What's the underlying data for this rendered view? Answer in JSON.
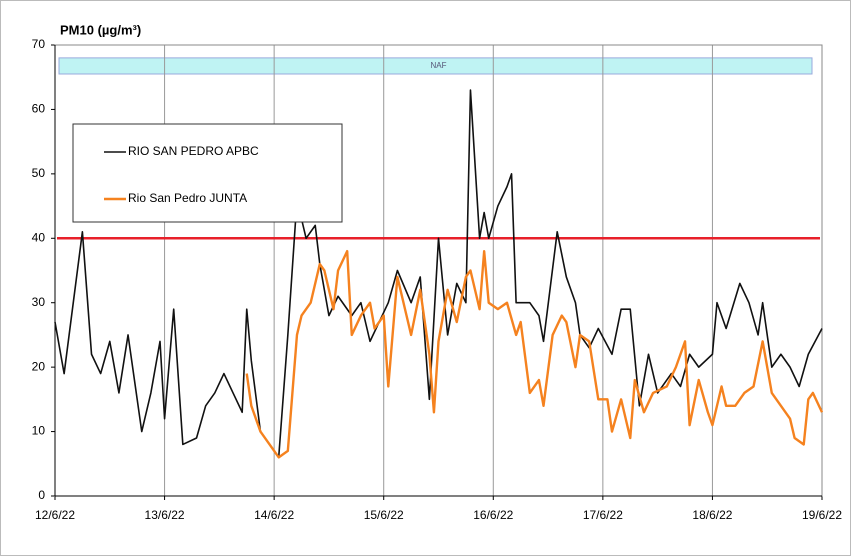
{
  "chart_data": {
    "type": "line",
    "title": "PM10 (µg/m³)",
    "xlim": [
      0,
      168
    ],
    "xticks": [
      {
        "value": 0,
        "label": "12/6/22"
      },
      {
        "value": 24,
        "label": "13/6/22"
      },
      {
        "value": 48,
        "label": "14/6/22"
      },
      {
        "value": 72,
        "label": "15/6/22"
      },
      {
        "value": 96,
        "label": "16/6/22"
      },
      {
        "value": 120,
        "label": "17/6/22"
      },
      {
        "value": 144,
        "label": "18/6/22"
      },
      {
        "value": 168,
        "label": "19/6/22"
      }
    ],
    "ylim": [
      0,
      70
    ],
    "yticks": [
      0,
      10,
      20,
      30,
      40,
      50,
      60,
      70
    ],
    "grid": "x",
    "reference_line": {
      "value": 40,
      "color": "#e8202a"
    },
    "band": {
      "label": "NAF",
      "from": 65.5,
      "to": 68,
      "color": "#bff3f3"
    },
    "legend": "upper left",
    "series": [
      {
        "name": "RIO SAN PEDRO APBC",
        "color": "#111111",
        "x": [
          0,
          2,
          6,
          8,
          10,
          12,
          14,
          16,
          19,
          21,
          23,
          24,
          26,
          28,
          31,
          33,
          35,
          37,
          39,
          41,
          42,
          43,
          45,
          47,
          49,
          51,
          53,
          55,
          57,
          58,
          60,
          62,
          65,
          67,
          69,
          71,
          73,
          75,
          78,
          80,
          82,
          84,
          86,
          88,
          90,
          91,
          93,
          94,
          95,
          97,
          99,
          100,
          101,
          104,
          106,
          107,
          110,
          112,
          114,
          115,
          117,
          119,
          122,
          124,
          126,
          128,
          130,
          132,
          135,
          137,
          139,
          141,
          144,
          145,
          147,
          150,
          152,
          154,
          155,
          157,
          159,
          161,
          163,
          165,
          168
        ],
        "values": [
          27,
          19,
          41,
          22,
          19,
          24,
          16,
          25,
          10,
          16,
          24,
          12,
          29,
          8,
          9,
          14,
          16,
          19,
          16,
          13,
          29,
          21,
          10,
          8,
          6,
          25,
          46,
          40,
          42,
          36,
          28,
          31,
          28,
          30,
          24,
          27,
          30,
          35,
          30,
          34,
          15,
          40,
          25,
          33,
          30,
          63,
          40,
          44,
          40,
          45,
          48,
          50,
          30,
          30,
          28,
          24,
          41,
          34,
          30,
          25,
          23,
          26,
          22,
          29,
          29,
          14,
          22,
          16,
          19,
          17,
          22,
          20,
          22,
          30,
          26,
          33,
          30,
          25,
          30,
          20,
          22,
          20,
          17,
          22,
          26
        ]
      },
      {
        "name": "Rio San Pedro JUNTA",
        "color": "#f5821f",
        "x": [
          42,
          43,
          45,
          47,
          49,
          51,
          53,
          54,
          56,
          58,
          59,
          61,
          62,
          64,
          65,
          67,
          69,
          70,
          72,
          73,
          75,
          77,
          78,
          80,
          82,
          83,
          84,
          86,
          88,
          90,
          91,
          93,
          94,
          95,
          97,
          99,
          101,
          102,
          104,
          106,
          107,
          109,
          111,
          112,
          114,
          115,
          117,
          119,
          121,
          122,
          124,
          126,
          127,
          129,
          131,
          134,
          136,
          138,
          139,
          141,
          143,
          144,
          146,
          147,
          149,
          151,
          153,
          155,
          157,
          159,
          161,
          162,
          164,
          165,
          166,
          168
        ],
        "values": [
          19,
          14,
          10,
          8,
          6,
          7,
          25,
          28,
          30,
          36,
          35,
          29,
          35,
          38,
          25,
          28,
          30,
          26,
          28,
          17,
          34,
          28,
          25,
          32,
          22,
          13,
          24,
          32,
          27,
          34,
          35,
          29,
          38,
          30,
          29,
          30,
          25,
          27,
          16,
          18,
          14,
          25,
          28,
          27,
          20,
          25,
          24,
          15,
          15,
          10,
          15,
          9,
          18,
          13,
          16,
          17,
          20,
          24,
          11,
          18,
          13,
          11,
          17,
          14,
          14,
          16,
          17,
          24,
          16,
          14,
          12,
          9,
          8,
          15,
          16,
          13
        ]
      }
    ]
  }
}
